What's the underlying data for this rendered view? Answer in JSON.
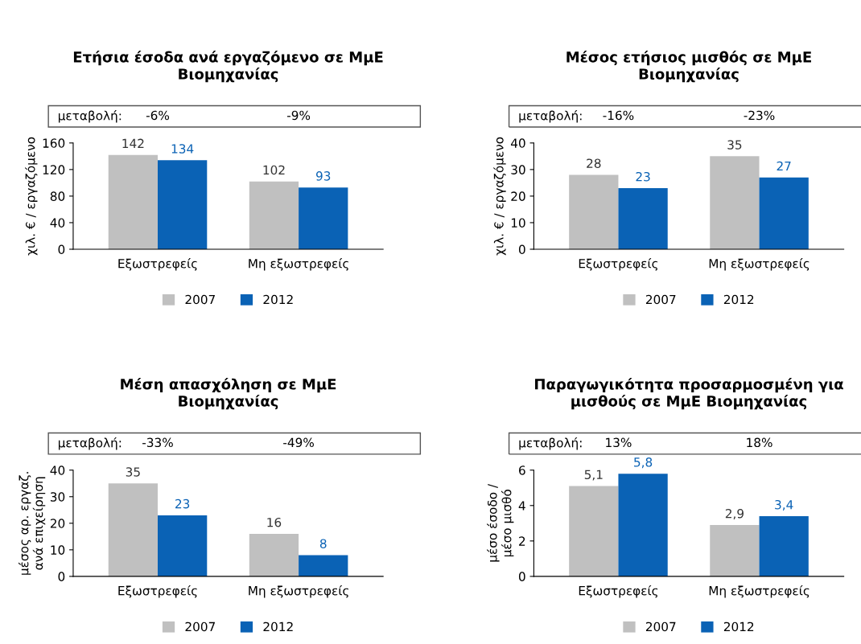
{
  "chart_data": [
    {
      "type": "bar",
      "title": "Ετήσια έσοδα ανά εργαζόμενο σε ΜμΕ\nΒιομηχανίας",
      "ylabel": "χιλ. € / εργαζόμενο",
      "categories": [
        "Εξωστρεφείς",
        "Μη εξωστρεφείς"
      ],
      "series": [
        {
          "name": "2007",
          "color": "#c0c0c0",
          "values": [
            142,
            102
          ]
        },
        {
          "name": "2012",
          "color": "#0a62b5",
          "values": [
            134,
            93
          ]
        }
      ],
      "ylim": [
        0,
        160
      ],
      "yticks": [
        0,
        40,
        80,
        120,
        160
      ],
      "data_labels": true,
      "legend": "bottom",
      "grid": false,
      "annotations": [
        "μεταβολή:",
        "-6%",
        "-9%"
      ]
    },
    {
      "type": "bar",
      "title": "Μέσος ετήσιος μισθός σε ΜμΕ\nΒιομηχανίας",
      "ylabel": "χιλ. € / εργαζόμενο",
      "categories": [
        "Εξωστρεφείς",
        "Μη εξωστρεφείς"
      ],
      "series": [
        {
          "name": "2007",
          "color": "#c0c0c0",
          "values": [
            28,
            35
          ]
        },
        {
          "name": "2012",
          "color": "#0a62b5",
          "values": [
            23,
            27
          ]
        }
      ],
      "ylim": [
        0,
        40
      ],
      "yticks": [
        0,
        10,
        20,
        30,
        40
      ],
      "data_labels": true,
      "legend": "bottom",
      "grid": false,
      "annotations": [
        "μεταβολή:",
        "-16%",
        "-23%"
      ]
    },
    {
      "type": "bar",
      "title": "Μέση απασχόληση σε ΜμΕ\nΒιομηχανίας",
      "ylabel": "μέσος αρ. εργαζ.\nανά επιχείρηση",
      "categories": [
        "Εξωστρεφείς",
        "Μη εξωστρεφείς"
      ],
      "series": [
        {
          "name": "2007",
          "color": "#c0c0c0",
          "values": [
            35,
            16
          ]
        },
        {
          "name": "2012",
          "color": "#0a62b5",
          "values": [
            23,
            8
          ]
        }
      ],
      "ylim": [
        0,
        40
      ],
      "yticks": [
        0,
        10,
        20,
        30,
        40
      ],
      "data_labels": true,
      "legend": "bottom",
      "grid": false,
      "annotations": [
        "μεταβολή:",
        "-33%",
        "-49%"
      ]
    },
    {
      "type": "bar",
      "title": "Παραγωγικότητα προσαρμοσμένη για\nμισθούς σε ΜμΕ Βιομηχανίας",
      "ylabel": "μέσο έσοδο /\nμέσο μισθό",
      "categories": [
        "Εξωστρεφείς",
        "Μη εξωστρεφείς"
      ],
      "series": [
        {
          "name": "2007",
          "color": "#c0c0c0",
          "values": [
            5.1,
            2.9
          ],
          "value_labels": [
            "5,1",
            "2,9"
          ]
        },
        {
          "name": "2012",
          "color": "#0a62b5",
          "values": [
            5.8,
            3.4
          ],
          "value_labels": [
            "5,8",
            "3,4"
          ]
        }
      ],
      "ylim": [
        0,
        6
      ],
      "yticks": [
        0,
        2,
        4,
        6
      ],
      "legend": "bottom",
      "grid": false,
      "annotations": [
        "μεταβολή:",
        "13%",
        "18%"
      ]
    }
  ]
}
